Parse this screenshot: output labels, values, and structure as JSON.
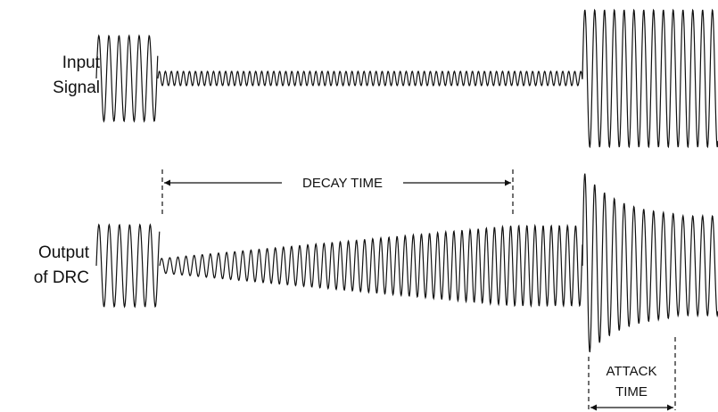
{
  "labels": {
    "input": [
      "Input",
      "Signal"
    ],
    "output": [
      "Output",
      "of DRC"
    ]
  },
  "annotations": {
    "decay": "DECAY TIME",
    "attack": [
      "ATTACK",
      "TIME"
    ]
  }
}
